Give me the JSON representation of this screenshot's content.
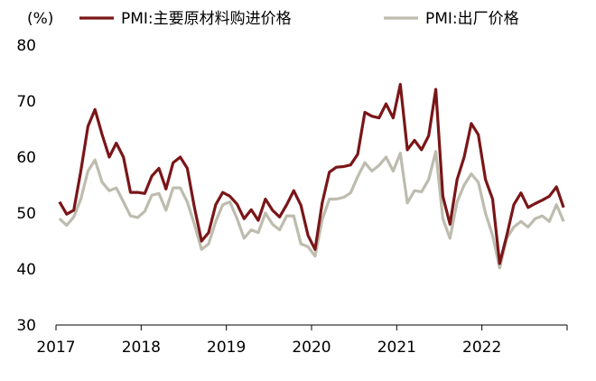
{
  "chart_data": {
    "type": "line",
    "title": "",
    "xlabel": "",
    "ylabel": "(%)",
    "ylim": [
      30,
      80
    ],
    "yticks": [
      30,
      40,
      50,
      60,
      70,
      80
    ],
    "x_start": "2017-01",
    "x_end": "2022-12",
    "xtick_labels": [
      "2017",
      "2018",
      "2019",
      "2020",
      "2021",
      "2022"
    ],
    "grid": false,
    "legend_position": "top",
    "series": [
      {
        "name": "PMI:主要原材料购进价格",
        "color": "#7a1618",
        "values": [
          52.0,
          49.8,
          50.5,
          57.5,
          65.5,
          68.5,
          64.0,
          60.0,
          62.5,
          60.0,
          53.7,
          53.7,
          53.5,
          56.6,
          58.0,
          54.3,
          59.0,
          60.0,
          58.0,
          51.0,
          45.0,
          46.5,
          51.5,
          53.7,
          53.0,
          51.6,
          49.0,
          50.6,
          48.7,
          52.5,
          50.5,
          49.3,
          51.5,
          54.0,
          51.4,
          46.0,
          43.5,
          51.8,
          57.3,
          58.2,
          58.3,
          58.6,
          60.5,
          68.0,
          67.3,
          67.0,
          69.5,
          67.0,
          73.0,
          61.3,
          63.0,
          61.3,
          63.8,
          72.1,
          53.0,
          48.0,
          56.0,
          60.0,
          66.0,
          64.0,
          56.0,
          52.5,
          41.0,
          46.0,
          51.5,
          53.6,
          51.0,
          51.7,
          52.3,
          53.0,
          54.7,
          51.0
        ]
      },
      {
        "name": "PMI:出厂价格",
        "color": "#bdbcae",
        "values": [
          49.0,
          47.8,
          49.3,
          52.5,
          57.5,
          59.5,
          55.5,
          54.0,
          54.5,
          52.0,
          49.5,
          49.2,
          50.3,
          53.2,
          53.5,
          50.5,
          54.5,
          54.5,
          52.0,
          48.0,
          43.5,
          44.5,
          48.5,
          51.5,
          52.0,
          49.0,
          45.5,
          47.0,
          46.5,
          50.0,
          48.0,
          47.0,
          49.5,
          49.5,
          44.5,
          44.0,
          42.3,
          48.8,
          52.5,
          52.5,
          52.8,
          53.6,
          56.5,
          59.0,
          57.5,
          58.5,
          60.0,
          57.5,
          60.7,
          51.8,
          54.0,
          53.8,
          56.0,
          61.0,
          49.0,
          45.5,
          52.0,
          55.0,
          57.0,
          55.5,
          50.0,
          46.0,
          40.2,
          45.5,
          47.5,
          48.5,
          47.5,
          49.0,
          49.5,
          48.5,
          51.5,
          48.5
        ]
      }
    ]
  }
}
